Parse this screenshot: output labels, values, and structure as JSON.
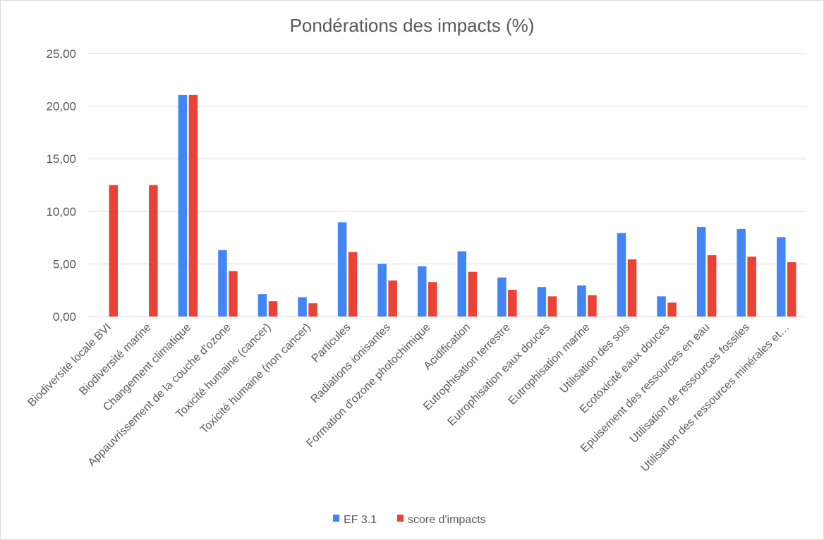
{
  "chart_data": {
    "type": "bar",
    "title": "Pondérations des impacts (%)",
    "xlabel": "",
    "ylabel": "",
    "ylim": [
      0,
      25
    ],
    "yticks": [
      0,
      5,
      10,
      15,
      20,
      25
    ],
    "ytick_labels": [
      "0,00",
      "5,00",
      "10,00",
      "15,00",
      "20,00",
      "25,00"
    ],
    "grid": true,
    "legend_position": "bottom",
    "categories": [
      "Biodiversité locale BVI",
      "Biodiversité marine",
      "Changement climatique",
      "Appauvrissement de la couche d'ozone",
      "Toxicité humaine (cancer)",
      "Toxicité humaine (non cancer)",
      "Particules",
      "Radiations ionisantes",
      "Formation d'ozone photochimique",
      "Acidification",
      "Eutrophisation terrestre",
      "Eutrophisation eaux douces",
      "Eutrophisation marine",
      "Utilisation des sols",
      "Ecotoxicité eaux douces",
      "Epuisement des ressources en eau",
      "Utilisation de ressources fossiles",
      "Utilisation des ressources minérales et…"
    ],
    "series": [
      {
        "name": "EF 3.1",
        "color": "#4285f4",
        "values": [
          0,
          0,
          21.06,
          6.31,
          2.13,
          1.84,
          8.96,
          5.01,
          4.78,
          6.2,
          3.71,
          2.8,
          2.96,
          7.94,
          1.92,
          8.51,
          8.32,
          7.55
        ]
      },
      {
        "name": "score d'impacts",
        "color": "#ea4335",
        "values": [
          12.5,
          12.5,
          21.06,
          4.32,
          1.46,
          1.26,
          6.14,
          3.43,
          3.27,
          4.25,
          2.54,
          1.92,
          2.03,
          5.44,
          1.32,
          5.83,
          5.7,
          5.17
        ]
      }
    ]
  }
}
